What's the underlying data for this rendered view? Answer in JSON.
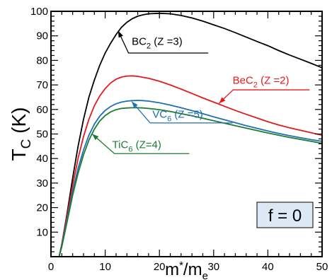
{
  "chart_data": {
    "type": "line",
    "x_axis": {
      "label_main": "m",
      "label_sup": "*",
      "label_rest": "/m",
      "label_sub": "e",
      "range": [
        0,
        50
      ],
      "ticks": [
        0,
        10,
        20,
        30,
        40,
        50
      ]
    },
    "y_axis": {
      "label_main": "T",
      "label_sub": "C",
      "label_rest": " (K)",
      "range": [
        0,
        100
      ],
      "ticks": [
        10,
        20,
        30,
        40,
        50,
        60,
        70,
        80,
        90,
        100
      ]
    },
    "grid": false,
    "series": [
      {
        "name": "BC2 (Z =3)",
        "label_main": "BC",
        "label_sub": "2",
        "label_rest": " (Z =3)",
        "color": "#000000",
        "points": [
          [
            1.5,
            0
          ],
          [
            2,
            5
          ],
          [
            3,
            18
          ],
          [
            4,
            32
          ],
          [
            5,
            45
          ],
          [
            6,
            56
          ],
          [
            7,
            65
          ],
          [
            8,
            72
          ],
          [
            9,
            78
          ],
          [
            10,
            83
          ],
          [
            11,
            87
          ],
          [
            12,
            90.5
          ],
          [
            13,
            93.5
          ],
          [
            14,
            95.5
          ],
          [
            15,
            97
          ],
          [
            16,
            98
          ],
          [
            17,
            98.6
          ],
          [
            18,
            99
          ],
          [
            20,
            99.2
          ],
          [
            22,
            99
          ],
          [
            24,
            98.3
          ],
          [
            26,
            97.3
          ],
          [
            28,
            96
          ],
          [
            30,
            94.5
          ],
          [
            32,
            93
          ],
          [
            34,
            91.3
          ],
          [
            36,
            89.5
          ],
          [
            38,
            87.7
          ],
          [
            40,
            86
          ],
          [
            42,
            84
          ],
          [
            44,
            82.2
          ],
          [
            46,
            80.5
          ],
          [
            48,
            78.8
          ],
          [
            50,
            77
          ]
        ]
      },
      {
        "name": "BeC2 (Z =2)",
        "label_main": "BeC",
        "label_sub": "2",
        "label_rest": " (Z =2)",
        "color": "#e31a1c",
        "points": [
          [
            1.5,
            0
          ],
          [
            2,
            5
          ],
          [
            3,
            17
          ],
          [
            4,
            29
          ],
          [
            5,
            40
          ],
          [
            6,
            49
          ],
          [
            7,
            56
          ],
          [
            8,
            61.5
          ],
          [
            9,
            65.5
          ],
          [
            10,
            68.5
          ],
          [
            11,
            70.8
          ],
          [
            12,
            72.3
          ],
          [
            13,
            73.2
          ],
          [
            14,
            73.6
          ],
          [
            15,
            73.7
          ],
          [
            16,
            73.5
          ],
          [
            18,
            72.7
          ],
          [
            20,
            71.5
          ],
          [
            22,
            70
          ],
          [
            24,
            68.3
          ],
          [
            26,
            66.5
          ],
          [
            28,
            64.7
          ],
          [
            30,
            63
          ],
          [
            32,
            61.3
          ],
          [
            34,
            59.6
          ],
          [
            36,
            58
          ],
          [
            38,
            56.5
          ],
          [
            40,
            55
          ],
          [
            42,
            53.7
          ],
          [
            44,
            52.5
          ],
          [
            46,
            51.5
          ],
          [
            48,
            50.5
          ],
          [
            50,
            49.5
          ]
        ]
      },
      {
        "name": "VC6 (Z =5)",
        "label_main": "VC",
        "label_sub": "6",
        "label_rest": " (Z =5)",
        "color": "#1f6fb4",
        "points": [
          [
            1.5,
            0
          ],
          [
            2,
            4.5
          ],
          [
            3,
            15.5
          ],
          [
            4,
            26.5
          ],
          [
            5,
            36
          ],
          [
            6,
            43.5
          ],
          [
            7,
            49.5
          ],
          [
            8,
            54
          ],
          [
            9,
            57.3
          ],
          [
            10,
            59.6
          ],
          [
            11,
            61.2
          ],
          [
            12,
            62.3
          ],
          [
            13,
            63
          ],
          [
            14,
            63.4
          ],
          [
            15,
            63.6
          ],
          [
            16,
            63.7
          ],
          [
            17,
            63.6
          ],
          [
            18,
            63.4
          ],
          [
            20,
            62.7
          ],
          [
            22,
            61.8
          ],
          [
            24,
            60.7
          ],
          [
            26,
            59.5
          ],
          [
            28,
            58.3
          ],
          [
            30,
            57
          ],
          [
            32,
            55.8
          ],
          [
            34,
            54.6
          ],
          [
            36,
            53.4
          ],
          [
            38,
            52.3
          ],
          [
            40,
            51.2
          ],
          [
            42,
            50.2
          ],
          [
            44,
            49.3
          ],
          [
            46,
            48.5
          ],
          [
            48,
            47.7
          ],
          [
            50,
            47
          ]
        ]
      },
      {
        "name": "TiC6 (Z=4)",
        "label_main": "TiC",
        "label_sub": "6",
        "label_rest": " (Z=4)",
        "color": "#1e7b34",
        "points": [
          [
            1.5,
            0
          ],
          [
            2,
            4
          ],
          [
            3,
            14.5
          ],
          [
            4,
            25
          ],
          [
            5,
            34
          ],
          [
            6,
            41.5
          ],
          [
            7,
            47.5
          ],
          [
            8,
            52
          ],
          [
            9,
            55.3
          ],
          [
            10,
            57.5
          ],
          [
            11,
            59
          ],
          [
            12,
            59.9
          ],
          [
            13,
            60.4
          ],
          [
            14,
            60.6
          ],
          [
            15,
            60.7
          ],
          [
            16,
            60.7
          ],
          [
            17,
            60.6
          ],
          [
            18,
            60.4
          ],
          [
            20,
            59.9
          ],
          [
            22,
            59.2
          ],
          [
            24,
            58.3
          ],
          [
            26,
            57.4
          ],
          [
            28,
            56.4
          ],
          [
            30,
            55.4
          ],
          [
            32,
            54.4
          ],
          [
            34,
            53.4
          ],
          [
            36,
            52.4
          ],
          [
            38,
            51.4
          ],
          [
            40,
            50.4
          ],
          [
            42,
            49.5
          ],
          [
            44,
            48.6
          ],
          [
            46,
            47.8
          ],
          [
            48,
            47
          ],
          [
            50,
            46.2
          ]
        ]
      }
    ],
    "annotations": [
      {
        "series": 0,
        "tip": [
          12.4,
          92
        ],
        "hook": [
          14.3,
          83
        ],
        "end": [
          29,
          83
        ],
        "text_at": [
          14.9,
          86.3
        ]
      },
      {
        "series": 1,
        "tip": [
          31,
          62.5
        ],
        "hook": [
          33.6,
          68
        ],
        "end": [
          47.7,
          68
        ],
        "text_at": [
          33.5,
          70.4
        ]
      },
      {
        "series": 2,
        "tip": [
          14.9,
          63.2
        ],
        "hook": [
          18.3,
          54.5
        ],
        "end": [
          33.5,
          54.5
        ],
        "text_at": [
          18.7,
          56.6
        ]
      },
      {
        "series": 3,
        "tip": [
          7.6,
          50
        ],
        "hook": [
          11.7,
          42
        ],
        "end": [
          25.5,
          42
        ],
        "text_at": [
          11.3,
          44.2
        ]
      }
    ],
    "legend_box": {
      "text": "f = 0",
      "background": "#dce9f5"
    }
  }
}
